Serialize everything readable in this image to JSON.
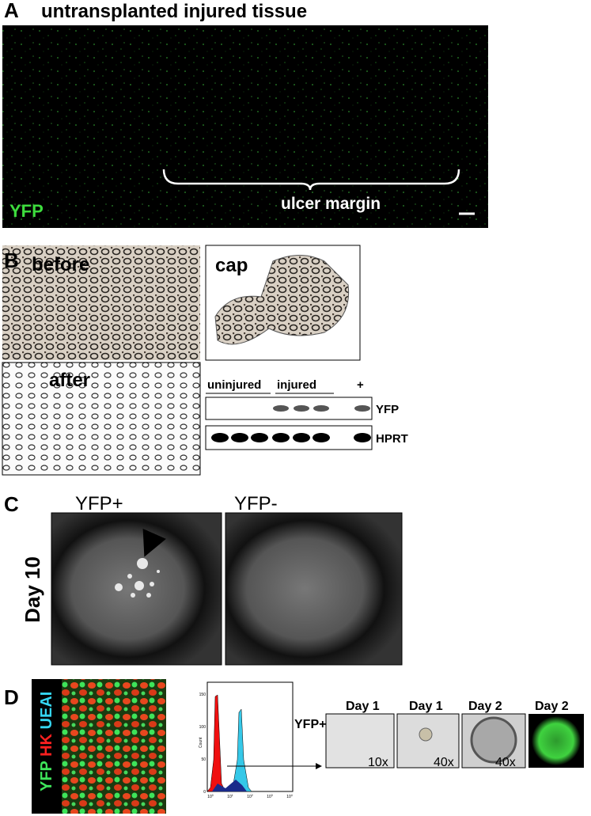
{
  "panel_a": {
    "label": "A",
    "title": "untransplanted injured tissue",
    "channel": "YFP",
    "region": "ulcer margin"
  },
  "panel_b": {
    "label": "B",
    "images": [
      "before",
      "cap",
      "after"
    ],
    "gel": {
      "groups": [
        "uninjured",
        "injured",
        "+"
      ],
      "bands": [
        "YFP",
        "HPRT"
      ]
    }
  },
  "panel_c": {
    "label": "C",
    "conditions": [
      "YFP+",
      "YFP-"
    ],
    "timepoint": "Day 10"
  },
  "panel_d": {
    "label": "D",
    "stains": [
      "YFP",
      "HK",
      "UEAI"
    ],
    "histogram": {
      "y_label": "Count",
      "y_ticks": [
        "150",
        "100",
        "50",
        "0"
      ],
      "x_ticks": [
        {
          "base": "10",
          "exp": "0"
        },
        {
          "base": "10",
          "exp": "1"
        },
        {
          "base": "10",
          "exp": "2"
        },
        {
          "base": "10",
          "exp": "3"
        },
        {
          "base": "10",
          "exp": "4"
        }
      ],
      "gate": "YFP+"
    },
    "culture": [
      {
        "day": "Day 1",
        "magnification": "10x"
      },
      {
        "day": "Day 1",
        "magnification": "40x"
      },
      {
        "day": "Day 2",
        "magnification": "40x"
      },
      {
        "day": "Day 2"
      }
    ]
  }
}
